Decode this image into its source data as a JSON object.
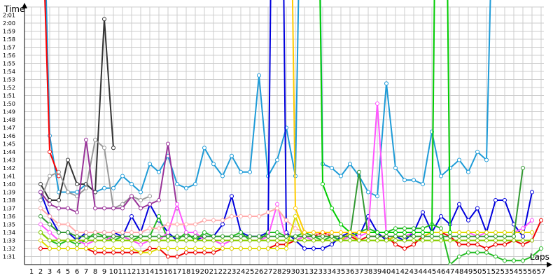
{
  "chart_data": {
    "type": "line",
    "ylabel": "Time",
    "xlabel": "Laps",
    "x": [
      1,
      2,
      3,
      4,
      5,
      6,
      7,
      8,
      9,
      10,
      11,
      12,
      13,
      14,
      15,
      16,
      17,
      18,
      19,
      20,
      21,
      22,
      23,
      24,
      25,
      26,
      27,
      28,
      29,
      30,
      31,
      32,
      33,
      34,
      35,
      36,
      37,
      38,
      39,
      40,
      41,
      42,
      43,
      44,
      45,
      46,
      47,
      48,
      49,
      50,
      51,
      52,
      53,
      54,
      55,
      56,
      57
    ],
    "y_ticks": [
      "1:31",
      "1:32",
      "1:33",
      "1:34",
      "1:35",
      "1:36",
      "1:37",
      "1:38",
      "1:39",
      "1:40",
      "1:41",
      "1:42",
      "1:43",
      "1:44",
      "1:45",
      "1:46",
      "1:47",
      "1:48",
      "1:49",
      "1:50",
      "1:51",
      "1:52",
      "1:53",
      "1:54",
      "1:55",
      "1:56",
      "1:57",
      "1:58",
      "1:59",
      "2:00",
      "2:01"
    ],
    "ylim_seconds": [
      90,
      122
    ],
    "grid": true,
    "legend": "none",
    "series": [
      {
        "color": "#1e9bd7",
        "values": [
          null,
          150,
          106,
          99,
          99,
          99,
          100,
          99,
          99.5,
          99.5,
          101,
          100,
          99,
          102.5,
          101.5,
          103.5,
          100,
          99.5,
          100,
          104.5,
          102.5,
          101,
          103.5,
          101.5,
          101.5,
          113.5,
          101,
          103,
          107,
          101,
          166,
          180,
          102.5,
          102,
          101,
          102.5,
          101,
          99,
          98.5,
          112.5,
          102,
          100.5,
          100.5,
          100,
          106.5,
          101,
          102,
          103,
          101.5,
          104,
          103,
          150,
          170,
          null,
          null,
          null,
          null
        ]
      },
      {
        "color": "#0000dd",
        "values": [
          null,
          99,
          96,
          94,
          94,
          93,
          94,
          94,
          94,
          94,
          93.5,
          96,
          94,
          97.5,
          95.5,
          94,
          93,
          93,
          93,
          93.5,
          93.5,
          95,
          98.5,
          94,
          93.5,
          93.5,
          94,
          200,
          94,
          93,
          92,
          92,
          92,
          92.5,
          93.5,
          94,
          93.5,
          96,
          94,
          93,
          93.5,
          93,
          94,
          96.5,
          94,
          96,
          95,
          97.5,
          95.5,
          97,
          94,
          98,
          98,
          95,
          93.5,
          99,
          null
        ]
      },
      {
        "color": "#22bb22",
        "values": [
          null,
          94,
          93,
          92.5,
          93,
          92.5,
          93,
          94,
          93.5,
          93,
          93.5,
          93,
          93.5,
          93.5,
          96,
          93,
          93,
          94,
          93,
          94,
          93.5,
          93.5,
          93.5,
          94,
          93,
          93,
          94,
          94,
          93.5,
          93.5,
          94,
          93.5,
          93,
          93.5,
          93,
          93.5,
          94,
          94.5,
          94,
          94,
          94.5,
          94.5,
          94.5,
          94.5,
          95,
          94.5,
          90,
          91,
          91.5,
          91.5,
          91.5,
          91,
          90.5,
          90.5,
          90.5,
          91,
          92
        ]
      },
      {
        "color": "#ff0000",
        "values": [
          null,
          140,
          104,
          101,
          null,
          null,
          null,
          null,
          null,
          null,
          null,
          null,
          null,
          null,
          null,
          null,
          null,
          null,
          null,
          null,
          null,
          null,
          null,
          null,
          null,
          null,
          null,
          null,
          null,
          null,
          null,
          null,
          null,
          null,
          null,
          null,
          null,
          null,
          null,
          null,
          null,
          null,
          null,
          null,
          null,
          null,
          null,
          null,
          null,
          null,
          null,
          null,
          null,
          null,
          null,
          null,
          null
        ]
      },
      {
        "color": "#ee0000",
        "values": [
          null,
          92,
          92,
          92,
          92,
          92,
          92,
          91.5,
          91.5,
          91.5,
          91.5,
          91.5,
          91.5,
          92,
          92,
          91,
          91,
          91.5,
          91.5,
          91.5,
          91.5,
          92,
          92,
          92,
          92,
          92,
          92,
          92.5,
          92.5,
          93,
          93.5,
          93.5,
          94,
          93.5,
          93.5,
          93.5,
          93,
          93.5,
          93.5,
          93.5,
          92.5,
          92,
          92.5,
          93.5,
          94,
          94,
          93.5,
          92.5,
          92.5,
          92.5,
          92,
          92.5,
          92.5,
          93,
          92.5,
          93,
          95.5
        ]
      },
      {
        "color": "#333333",
        "values": [
          null,
          100,
          98,
          98,
          103,
          100,
          100,
          99,
          120.5,
          104.5,
          null,
          null,
          null,
          null,
          null,
          null,
          null,
          null,
          null,
          null,
          null,
          null,
          null,
          null,
          null,
          null,
          null,
          null,
          null,
          null,
          null,
          null,
          null,
          null,
          null,
          null,
          null,
          null,
          null,
          null,
          null,
          null,
          null,
          null,
          null,
          null,
          null,
          null,
          null,
          null,
          null,
          null,
          null,
          null,
          null,
          null,
          null
        ]
      },
      {
        "color": "#999999",
        "values": [
          null,
          98,
          101,
          101.5,
          99,
          98.5,
          99.5,
          105.5,
          104.5,
          97,
          97.5,
          98.5,
          98,
          98.5,
          null,
          null,
          null,
          null,
          null,
          null,
          null,
          null,
          null,
          null,
          null,
          null,
          null,
          null,
          null,
          null,
          null,
          null,
          null,
          null,
          null,
          null,
          null,
          null,
          null,
          null,
          null,
          null,
          null,
          null,
          null,
          null,
          null,
          null,
          null,
          null,
          null,
          null,
          null,
          null,
          null,
          null,
          null
        ]
      },
      {
        "color": "#993399",
        "values": [
          null,
          99,
          97.5,
          97,
          97,
          96.5,
          105.5,
          97,
          97,
          97,
          97,
          98.5,
          97,
          97.5,
          98,
          105,
          97,
          null,
          null,
          null,
          null,
          null,
          null,
          null,
          null,
          null,
          null,
          null,
          null,
          null,
          null,
          null,
          null,
          null,
          null,
          null,
          null,
          null,
          null,
          null,
          null,
          null,
          null,
          null,
          null,
          null,
          null,
          null,
          null,
          null,
          null,
          null,
          null,
          null,
          null,
          null,
          null
        ]
      },
      {
        "color": "#ff55ff",
        "values": [
          null,
          95,
          94,
          93,
          93,
          93,
          92.5,
          93,
          93,
          93.5,
          93.5,
          93,
          92.5,
          93,
          93,
          94,
          97.5,
          94,
          94,
          93,
          93,
          92.5,
          93,
          93,
          93,
          93,
          93.5,
          97.5,
          93,
          93,
          93.5,
          93,
          93,
          93,
          93,
          93.5,
          93.5,
          94,
          110,
          93.5,
          93.5,
          93.5,
          94,
          94,
          94,
          94,
          94,
          94,
          94,
          93.5,
          94,
          94,
          94,
          94,
          94.5,
          95.5,
          null
        ]
      },
      {
        "color": "#ffaaaa",
        "values": [
          null,
          97,
          96,
          95,
          95,
          94,
          94,
          94,
          94,
          94,
          94,
          94,
          94,
          94.5,
          94.5,
          95,
          95,
          95,
          95,
          95.5,
          95.5,
          95.5,
          96,
          96,
          96,
          96,
          96.5,
          97,
          95.5,
          94.5,
          94,
          94,
          93.5,
          94,
          94,
          94,
          94,
          94,
          94,
          94,
          94,
          94,
          94,
          94,
          94,
          94,
          94,
          94,
          94,
          94,
          94,
          94,
          94,
          94,
          94,
          94,
          null
        ]
      },
      {
        "color": "#dddd00",
        "values": [
          null,
          93,
          92,
          92,
          92,
          92,
          92,
          92,
          92,
          92,
          92,
          92,
          91.5,
          91.5,
          92,
          92,
          92,
          92,
          92,
          92,
          92,
          92,
          92,
          92,
          92,
          92,
          92,
          92,
          92,
          96,
          93,
          93,
          93,
          93,
          93,
          94,
          93,
          93,
          93,
          93,
          93.5,
          93.5,
          93.5,
          93.5,
          94,
          94,
          94,
          94,
          94,
          94,
          94,
          94,
          94,
          94,
          94,
          94,
          null
        ]
      },
      {
        "color": "#88cc00",
        "values": [
          null,
          94,
          93,
          93,
          93,
          93,
          93,
          93,
          93,
          93,
          93,
          93,
          93,
          93,
          93,
          93,
          93,
          93,
          93,
          93,
          93,
          93,
          93,
          93,
          93,
          93,
          93,
          93,
          93,
          93,
          93,
          93,
          93,
          93,
          93,
          93,
          93,
          93,
          93,
          93,
          93,
          93,
          93,
          93,
          93,
          93,
          93,
          93,
          93,
          93,
          93,
          93,
          93,
          93,
          93,
          93,
          null
        ]
      },
      {
        "color": "#339933",
        "values": [
          null,
          96,
          95,
          94,
          94,
          93.5,
          93.5,
          93.5,
          93.5,
          93.5,
          93.5,
          93.5,
          93.5,
          93.5,
          93.5,
          93.5,
          93.5,
          93.5,
          93.5,
          93.5,
          93.5,
          93.5,
          93.5,
          93.5,
          93.5,
          93.5,
          93.5,
          93.5,
          93.5,
          93.5,
          93.5,
          93.5,
          93.5,
          93.5,
          93.5,
          93.5,
          101.5,
          93.5,
          93.5,
          93.5,
          93.5,
          93.5,
          93.5,
          93.5,
          93.5,
          93.5,
          93.5,
          93.5,
          93.5,
          93.5,
          93.5,
          93.5,
          93.5,
          93.5,
          102,
          null,
          null
        ]
      },
      {
        "color": "#00cc00",
        "values": [
          null,
          null,
          null,
          null,
          null,
          null,
          null,
          null,
          null,
          null,
          null,
          null,
          null,
          null,
          null,
          null,
          null,
          null,
          null,
          null,
          null,
          null,
          null,
          null,
          null,
          null,
          null,
          null,
          null,
          null,
          null,
          180,
          100,
          97,
          95,
          94,
          94,
          94,
          94,
          94,
          94,
          94,
          94,
          94,
          94,
          200,
          94,
          null,
          null,
          null,
          null,
          null,
          null,
          null,
          null,
          null,
          null
        ]
      },
      {
        "color": "#ffcc00",
        "values": [
          null,
          null,
          null,
          null,
          null,
          null,
          null,
          null,
          null,
          null,
          null,
          null,
          null,
          null,
          null,
          null,
          null,
          null,
          null,
          null,
          null,
          null,
          null,
          null,
          null,
          null,
          null,
          null,
          180,
          97,
          94,
          94,
          94,
          94,
          94,
          94,
          94,
          94,
          null,
          null,
          null,
          null,
          null,
          null,
          null,
          null,
          null,
          null,
          null,
          null,
          null,
          null,
          null,
          null,
          null,
          null,
          null
        ]
      }
    ]
  }
}
